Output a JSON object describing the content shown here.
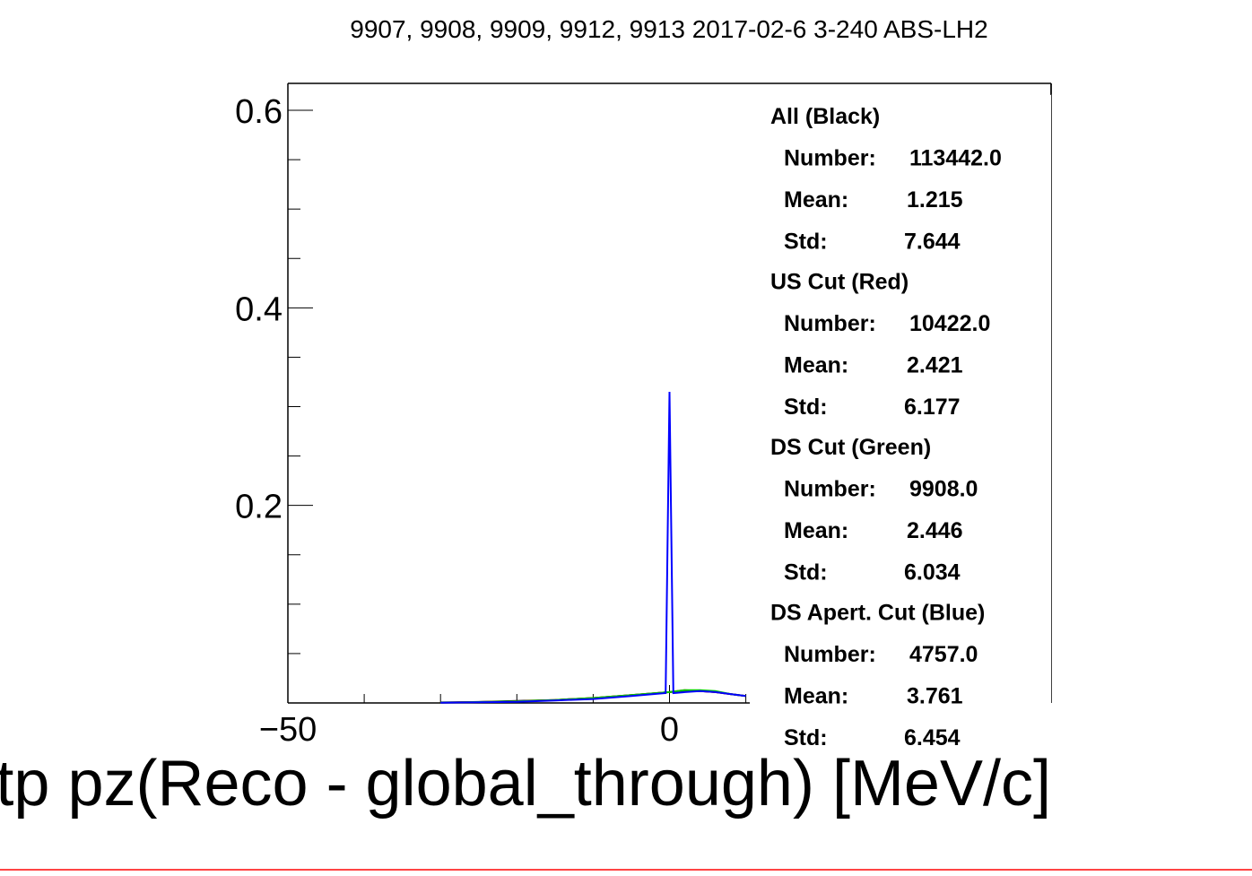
{
  "chart_data": {
    "type": "line",
    "title": "9907, 9908, 9909, 9912, 9913 2017-02-6 3-240 ABS-LH2",
    "xlabel": "tku_tp pz(Reco - global_through) [MeV/c]",
    "ylabel": "",
    "xlim": [
      -50,
      50
    ],
    "ylim": [
      0,
      0.6
    ],
    "x_ticks": [
      {
        "value": -50,
        "label": "−50"
      },
      {
        "value": 0,
        "label": "0"
      }
    ],
    "y_ticks": [
      {
        "value": 0.2,
        "label": "0.2"
      },
      {
        "value": 0.4,
        "label": "0.4"
      },
      {
        "value": 0.6,
        "label": "0.6"
      }
    ],
    "colors": {
      "all": "#000000",
      "us": "#ff0000",
      "ds": "#00cc00",
      "aper": "#0000ff"
    },
    "series": [
      {
        "name": "All (Black)",
        "color": "#000000",
        "x": [
          -30,
          -25,
          -20,
          -15,
          -10,
          -5,
          0,
          2,
          4,
          6,
          8,
          10
        ],
        "y": [
          0.0005,
          0.001,
          0.002,
          0.003,
          0.005,
          0.008,
          0.011,
          0.012,
          0.012,
          0.011,
          0.009,
          0.007
        ]
      },
      {
        "name": "US Cut (Red)",
        "color": "#ff0000",
        "x": [
          -30,
          -25,
          -20,
          -15,
          -10,
          -5,
          0,
          2,
          4,
          6,
          8,
          10
        ],
        "y": [
          0.0004,
          0.0009,
          0.0015,
          0.003,
          0.005,
          0.008,
          0.011,
          0.013,
          0.012,
          0.011,
          0.009,
          0.007
        ]
      },
      {
        "name": "DS Cut (Green)",
        "color": "#00cc00",
        "x": [
          -30,
          -25,
          -20,
          -15,
          -10,
          -5,
          0,
          2,
          4,
          6,
          8,
          10
        ],
        "y": [
          0.0004,
          0.0009,
          0.0015,
          0.003,
          0.005,
          0.008,
          0.011,
          0.013,
          0.013,
          0.012,
          0.009,
          0.007
        ]
      },
      {
        "name": "DS Apert. Cut (Blue)",
        "color": "#0000ff",
        "x": [
          -30,
          -25,
          -20,
          -15,
          -10,
          -5,
          -0.5,
          0,
          0.5,
          2,
          4,
          6,
          8,
          10
        ],
        "y": [
          0.0003,
          0.0007,
          0.0012,
          0.0025,
          0.004,
          0.007,
          0.01,
          0.315,
          0.01,
          0.011,
          0.012,
          0.011,
          0.009,
          0.007
        ]
      }
    ],
    "stats": [
      {
        "title": "All (Black)",
        "number": "113442.0",
        "mean": "1.215",
        "std": "7.644"
      },
      {
        "title": "US Cut (Red)",
        "number": "10422.0",
        "mean": "2.421",
        "std": "6.177"
      },
      {
        "title": "DS Cut (Green)",
        "number": "9908.0",
        "mean": "2.446",
        "std": "6.034"
      },
      {
        "title": "DS Apert. Cut (Blue)",
        "number": "4757.0",
        "mean": "3.761",
        "std": "6.454"
      }
    ],
    "stat_labels": {
      "number": "Number:",
      "mean": "Mean:",
      "std": "Std:"
    }
  }
}
